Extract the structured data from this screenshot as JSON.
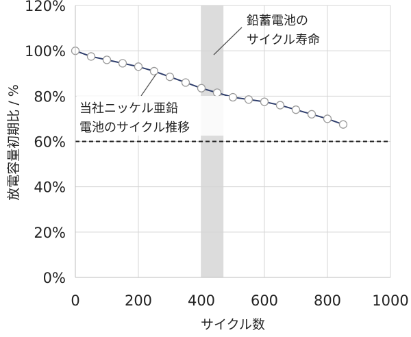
{
  "chart_data": {
    "type": "line",
    "xlabel": "サイクル数",
    "ylabel": "放電容量初期比 / %",
    "xlim": [
      0,
      1000
    ],
    "ylim": [
      0,
      120
    ],
    "x_ticks": [
      0,
      200,
      400,
      600,
      800,
      1000
    ],
    "x_tick_labels": [
      "0",
      "200",
      "400",
      "600",
      "800",
      "1000"
    ],
    "y_ticks": [
      0,
      20,
      40,
      60,
      80,
      100,
      120
    ],
    "y_tick_labels": [
      "0%",
      "20%",
      "40%",
      "60%",
      "80%",
      "100%",
      "120%"
    ],
    "grid": true,
    "series": [
      {
        "color": "#2e3d6b",
        "marker_fill": "#ffffff",
        "marker_stroke": "#9a9a9a",
        "x": [
          0,
          50,
          100,
          150,
          200,
          250,
          300,
          350,
          400,
          450,
          500,
          550,
          600,
          650,
          700,
          750,
          800,
          850
        ],
        "y": [
          100,
          97.5,
          96,
          94.5,
          93,
          91,
          88.5,
          86,
          83.5,
          81.5,
          79.5,
          78.5,
          77.5,
          76,
          74,
          72,
          70,
          67.5
        ]
      }
    ],
    "reference_line": {
      "y": 60,
      "style": "dashed",
      "color": "#222222"
    },
    "shaded_band": {
      "x": [
        400,
        470
      ],
      "color": "#dcdcdc"
    },
    "annotations": [
      {
        "lines": [
          "鉛蓄電池の",
          "サイクル寿命"
        ]
      },
      {
        "lines": [
          "当社ニッケル亜鉛",
          "電池のサイクル推移"
        ]
      }
    ]
  }
}
